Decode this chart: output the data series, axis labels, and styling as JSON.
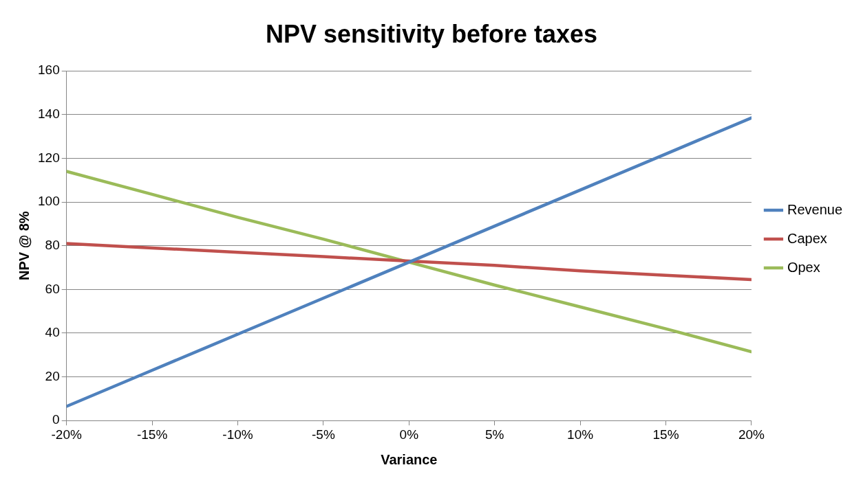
{
  "chart_data": {
    "type": "line",
    "title": "NPV sensitivity before taxes",
    "xlabel": "Variance",
    "ylabel": "NPV @ 8%",
    "x": [
      -20,
      -15,
      -10,
      -5,
      0,
      5,
      10,
      15,
      20
    ],
    "series": [
      {
        "name": "Revenue",
        "color": "#4f81bd",
        "values": [
          6.5,
          23,
          39.5,
          56,
          72.5,
          89,
          105.5,
          122,
          138.5
        ]
      },
      {
        "name": "Capex",
        "color": "#c0504d",
        "values": [
          81,
          79,
          77,
          75,
          73,
          71,
          68.5,
          66.5,
          64.5
        ]
      },
      {
        "name": "Opex",
        "color": "#9bbb59",
        "values": [
          114,
          103.5,
          93,
          83,
          72.5,
          62,
          52,
          42,
          31.5
        ]
      }
    ],
    "xlim": [
      -20,
      20
    ],
    "xticks": [
      {
        "value": -20,
        "label": "-20%"
      },
      {
        "value": -15,
        "label": "-15%"
      },
      {
        "value": -10,
        "label": "-10%"
      },
      {
        "value": -5,
        "label": "-5%"
      },
      {
        "value": 0,
        "label": "0%"
      },
      {
        "value": 5,
        "label": "5%"
      },
      {
        "value": 10,
        "label": "10%"
      },
      {
        "value": 15,
        "label": "15%"
      },
      {
        "value": 20,
        "label": "20%"
      }
    ],
    "ylim": [
      0,
      160
    ],
    "yticks": [
      0,
      20,
      40,
      60,
      80,
      100,
      120,
      140,
      160
    ],
    "grid": "y",
    "legend": "right",
    "marker": "none",
    "line_style": "solid"
  }
}
